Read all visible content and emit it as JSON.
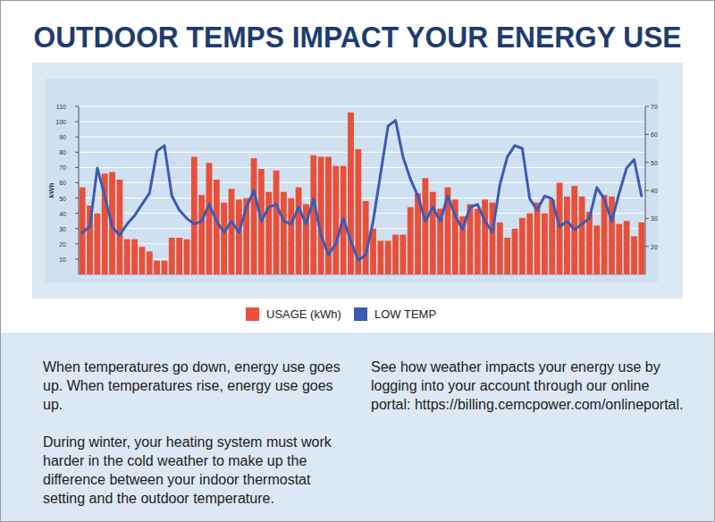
{
  "chart_data": {
    "type": "bar",
    "title": "OUTDOOR TEMPS IMPACT YOUR ENERGY USE",
    "y_label": "kWh",
    "categories": [
      null,
      null,
      null,
      null,
      null,
      null,
      null,
      null,
      null,
      null,
      null,
      null,
      null,
      null,
      null,
      null,
      null,
      null,
      null,
      null,
      null,
      null,
      null,
      null,
      null,
      null,
      null,
      null,
      null,
      null,
      null,
      null,
      null,
      null,
      null,
      null,
      null,
      null,
      null,
      null,
      null,
      null,
      null,
      null,
      null,
      null,
      null,
      null,
      null,
      null,
      null,
      null,
      null,
      null,
      null,
      null,
      null,
      null,
      null,
      null,
      null,
      null,
      null,
      null,
      null,
      null,
      null,
      null,
      null,
      null,
      null,
      null,
      null,
      null,
      null,
      null
    ],
    "series": [
      {
        "name": "USAGE (kWh)",
        "type": "bar",
        "color": "#e8503a",
        "values": [
          57,
          45,
          40,
          66,
          67,
          62,
          23,
          23,
          18,
          15,
          9,
          9,
          24,
          24,
          23,
          77,
          52,
          73,
          62,
          47,
          56,
          49,
          50,
          76,
          69,
          54,
          68,
          54,
          50,
          57,
          46,
          78,
          77,
          77,
          71,
          71,
          106,
          82,
          48,
          30,
          22,
          22,
          26,
          26,
          44,
          53,
          63,
          54,
          43,
          57,
          49,
          38,
          46,
          43,
          49,
          47,
          34,
          24,
          30,
          37,
          40,
          47,
          40,
          49,
          60,
          51,
          58,
          51,
          41,
          32,
          52,
          51,
          33,
          35,
          25,
          34
        ]
      },
      {
        "name": "LOW TEMP",
        "type": "line",
        "axis": "y2",
        "color": "#3b5bb5",
        "values": [
          25,
          27,
          48,
          38,
          27,
          24,
          28,
          31,
          35,
          39,
          54,
          56,
          38,
          33,
          30,
          28,
          29,
          35,
          29,
          25,
          29,
          25,
          34,
          40,
          29,
          34,
          35,
          29,
          28,
          34,
          28,
          37,
          24,
          17,
          21,
          30,
          22,
          15,
          17,
          29,
          46,
          63,
          65,
          52,
          44,
          38,
          29,
          34,
          29,
          38,
          31,
          26,
          34,
          35,
          29,
          25,
          42,
          52,
          56,
          55,
          37,
          33,
          38,
          37,
          27,
          29,
          26,
          28,
          30,
          41,
          37,
          29,
          39,
          48,
          51,
          38
        ]
      }
    ],
    "ylim": [
      0,
      110
    ],
    "yticks": [
      10,
      20,
      30,
      40,
      50,
      60,
      70,
      80,
      90,
      100,
      110
    ],
    "y2lim": [
      10,
      70
    ],
    "y2ticks": [
      20,
      30,
      40,
      50,
      60,
      70
    ],
    "grid": true,
    "legend": "bottom",
    "tick_labels": "y"
  },
  "body": {
    "left": [
      "When temperatures go down, energy use goes up. When temperatures rise, energy use goes up.",
      "During winter, your heating system must work harder in the cold weather to make up the difference between your indoor thermostat setting and the outdoor temperature."
    ],
    "right": [
      "See how weather impacts your energy use by logging into your account through our online portal: https://billing.cemcpower.com/onlineportal."
    ]
  }
}
